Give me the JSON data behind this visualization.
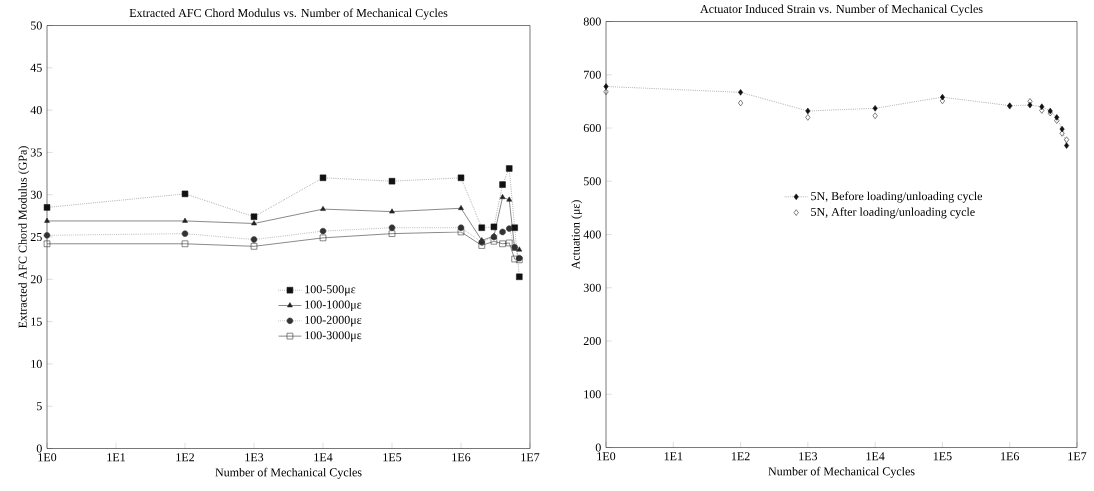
{
  "chart_data": [
    {
      "type": "line",
      "title": "Extracted AFC Chord Modulus vs. Number of Mechanical Cycles",
      "xlabel": "Number of Mechanical Cycles",
      "ylabel": "Extracted AFC Chord Modulus (GPa)",
      "log": "x",
      "x": [
        1,
        100,
        1000,
        10000,
        100000,
        1000000,
        2000000,
        3000000,
        4000000,
        5000000,
        6000000,
        7000000
      ],
      "xlim": [
        1,
        10000000
      ],
      "xticks": [
        {
          "value": 1,
          "label": "1E0"
        },
        {
          "value": 10,
          "label": "1E1"
        },
        {
          "value": 100,
          "label": "1E2"
        },
        {
          "value": 1000,
          "label": "1E3"
        },
        {
          "value": 10000,
          "label": "1E4"
        },
        {
          "value": 100000,
          "label": "1E5"
        },
        {
          "value": 1000000,
          "label": "1E6"
        },
        {
          "value": 10000000,
          "label": "1E7"
        }
      ],
      "ylim": [
        0,
        50
      ],
      "yticks": [
        0,
        5,
        10,
        15,
        20,
        25,
        30,
        35,
        40,
        45,
        50
      ],
      "legend": "center",
      "grid": false,
      "series": [
        {
          "name": "100-500με",
          "color": "#111111",
          "marker": "square",
          "line_style": "dotted",
          "values": [
            28.5,
            30.1,
            27.4,
            32.0,
            31.6,
            32.0,
            26.1,
            26.2,
            31.2,
            33.1,
            26.1,
            20.3
          ]
        },
        {
          "name": "100-1000με",
          "color": "#222222",
          "marker": "triangle",
          "line_style": "solid",
          "values": [
            26.9,
            26.9,
            26.6,
            28.3,
            28.0,
            28.4,
            24.6,
            25.1,
            29.7,
            29.4,
            23.6,
            23.5
          ]
        },
        {
          "name": "100-2000με",
          "color": "#333333",
          "marker": "circle",
          "line_style": "dotted",
          "values": [
            25.2,
            25.4,
            24.7,
            25.7,
            26.1,
            26.1,
            24.4,
            25.0,
            25.6,
            26.0,
            23.8,
            22.5
          ]
        },
        {
          "name": "100-3000με",
          "color": "#222222",
          "marker": "square",
          "line_style": "solid",
          "values": [
            24.2,
            24.2,
            23.9,
            24.9,
            25.4,
            25.6,
            24.0,
            24.5,
            24.2,
            24.3,
            22.4,
            22.3
          ]
        }
      ]
    },
    {
      "type": "line",
      "title": "Actuator Induced Strain vs. Number of Mechanical Cycles",
      "xlabel": "Number of Mechanical Cycles",
      "ylabel": "Actuation (με)",
      "log": "x",
      "x": [
        1,
        100,
        1000,
        10000,
        100000,
        1000000,
        2000000,
        3000000,
        4000000,
        5000000,
        6000000,
        7000000
      ],
      "xlim": [
        1,
        10000000
      ],
      "xticks": [
        {
          "value": 1,
          "label": "1E0"
        },
        {
          "value": 10,
          "label": "1E1"
        },
        {
          "value": 100,
          "label": "1E2"
        },
        {
          "value": 1000,
          "label": "1E3"
        },
        {
          "value": 10000,
          "label": "1E4"
        },
        {
          "value": 100000,
          "label": "1E5"
        },
        {
          "value": 1000000,
          "label": "1E6"
        },
        {
          "value": 10000000,
          "label": "1E7"
        }
      ],
      "ylim": [
        0,
        800
      ],
      "yticks": [
        0,
        100,
        200,
        300,
        400,
        500,
        600,
        700,
        800
      ],
      "legend": "right",
      "grid": false,
      "series": [
        {
          "name": "5N, Before loading/unloading cycle",
          "color": "#111111",
          "marker": "diamond",
          "line_style": "dotted",
          "values": [
            678,
            667,
            632,
            637,
            658,
            642,
            643,
            640,
            632,
            620,
            598,
            567
          ]
        },
        {
          "name": "5N, After loading/unloading cycle",
          "type": "scatter",
          "color": "#111111",
          "marker": "diamond",
          "values": [
            668,
            647,
            620,
            623,
            651,
            641,
            650,
            633,
            628,
            614,
            590,
            578
          ]
        }
      ]
    }
  ]
}
